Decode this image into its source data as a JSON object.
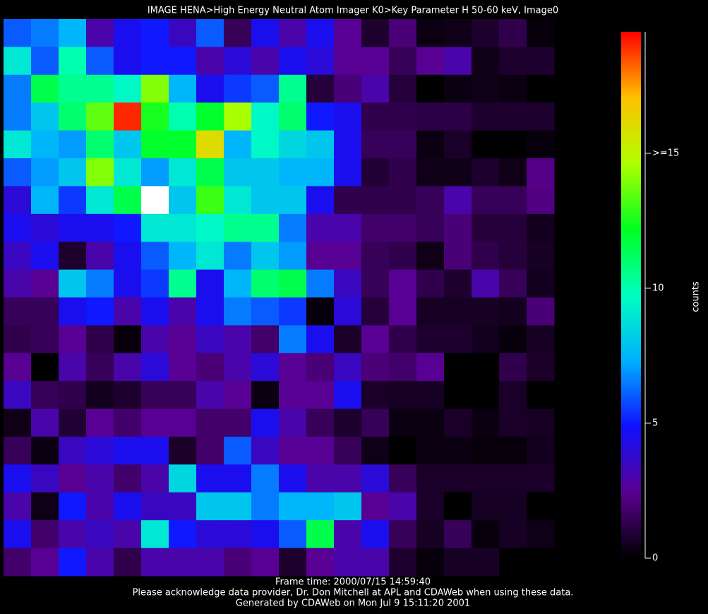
{
  "chart_data": {
    "type": "heatmap",
    "title": "IMAGE  HENA>High Energy Neutral Atom Imager  K0>Key Parameter H 50-60 keV, Image0",
    "annotations": [
      "Frame time: 2000/07/15 14:59:40",
      "Please acknowledge data provider, Dr. Don Mitchell at APL and CDAWeb when using these data.",
      "Generated by CDAWeb on Mon Jul  9 15:11:20 2001"
    ],
    "colorbar_label": "counts",
    "zlim": [
      0,
      19.5
    ],
    "zticks": [
      0,
      5,
      10,
      {
        "value": 15,
        "label": ">=15"
      }
    ],
    "colorscale": [
      "#000000",
      "#5a0090",
      "#1010ff",
      "#00b0ff",
      "#00ffc0",
      "#00ff20",
      "#b0ff00",
      "#ffc000",
      "#ff0000"
    ],
    "over_color": "#ffffff",
    "z": [
      [
        6,
        6.5,
        7.5,
        3,
        4.5,
        5,
        3.5,
        6,
        1.5,
        4.5,
        3,
        4.5,
        2.5,
        0.8,
        2,
        0.3,
        0.4,
        0.8,
        1.3,
        0.2
      ],
      [
        9,
        6,
        10,
        6,
        4.5,
        5,
        5,
        3,
        4,
        3,
        4.5,
        4,
        2.5,
        2.5,
        1.5,
        2.5,
        3,
        0.4,
        0.8,
        0.8
      ],
      [
        6.5,
        11.5,
        10.5,
        10.5,
        9.5,
        14,
        7.5,
        4.5,
        5.5,
        6,
        10.5,
        1,
        2,
        3,
        1,
        0,
        0.3,
        0.4,
        0.3,
        0
      ],
      [
        6.5,
        8,
        11,
        13.5,
        19,
        12.5,
        10,
        12,
        14.5,
        9.5,
        11,
        5,
        4.5,
        1.3,
        1.3,
        1.2,
        1.2,
        0.8,
        0.8,
        0.8
      ],
      [
        9,
        7.5,
        7,
        11,
        8,
        12,
        12,
        16,
        7.5,
        9.5,
        8.5,
        8,
        4.5,
        1.5,
        1.5,
        0.3,
        0.7,
        0,
        0,
        0.2
      ],
      [
        6,
        7,
        8,
        14,
        9,
        7,
        9,
        11.5,
        8,
        8,
        7.5,
        7.5,
        4.5,
        0.9,
        1.3,
        0.4,
        0.4,
        0.8,
        0.4,
        2.3
      ],
      [
        4,
        7.5,
        5.5,
        9,
        11.5,
        21,
        8,
        13,
        9,
        8,
        8,
        4.5,
        1.3,
        1.3,
        1.3,
        1.5,
        3,
        1.5,
        1.5,
        2.2
      ],
      [
        4.5,
        4,
        4.5,
        4.5,
        5,
        9,
        9,
        9.5,
        10.5,
        10.5,
        6.5,
        3,
        3,
        1.8,
        1.8,
        1.5,
        2,
        1,
        1,
        0.5
      ],
      [
        3.5,
        4.5,
        0.8,
        3,
        4.5,
        6,
        7.5,
        9,
        6.5,
        8,
        7,
        2.5,
        2.5,
        1.5,
        1.3,
        0.4,
        2,
        1.3,
        1,
        0.6
      ],
      [
        3,
        2.5,
        8,
        6.5,
        4.5,
        5.5,
        10.5,
        4.5,
        7.5,
        11,
        11.5,
        6.5,
        3.5,
        1.5,
        2.5,
        1.3,
        0.8,
        3,
        1.5,
        0.5
      ],
      [
        1.5,
        1.5,
        4.5,
        5,
        3,
        4.5,
        3,
        4.5,
        6.5,
        6,
        5.5,
        0.2,
        4,
        1,
        2.5,
        0.6,
        0.6,
        0.6,
        0.5,
        2
      ],
      [
        1.3,
        1.5,
        2.5,
        1.3,
        0.2,
        3,
        2.5,
        3.5,
        3,
        1.8,
        6.5,
        4.5,
        0.7,
        2.5,
        1.3,
        0.8,
        0.8,
        0.5,
        0.2,
        0.6
      ],
      [
        2.5,
        0,
        3,
        1.5,
        3,
        4,
        2.5,
        2,
        3,
        4,
        2.5,
        2,
        3.5,
        2,
        1.8,
        2.5,
        0,
        0,
        1.3,
        0.7
      ],
      [
        3.5,
        1.5,
        1.3,
        0.5,
        0.8,
        1.5,
        1.5,
        3,
        2.5,
        0.3,
        2.5,
        2.5,
        4.5,
        0.7,
        0.6,
        0.6,
        0,
        0,
        0.7,
        0
      ],
      [
        0.4,
        3,
        0.9,
        2.5,
        1.8,
        2.5,
        2.5,
        1.8,
        1.8,
        4.5,
        3,
        1.5,
        0.8,
        1.5,
        0.3,
        0.3,
        0.7,
        0.3,
        0.7,
        0.6
      ],
      [
        1.5,
        0.3,
        3.5,
        4,
        4.5,
        4.5,
        0.7,
        1.8,
        6,
        3.5,
        2.5,
        2.5,
        1.5,
        0.4,
        0,
        0.3,
        0.3,
        0.2,
        0.2,
        0.5
      ],
      [
        4.5,
        3.5,
        2.5,
        3,
        1.8,
        3,
        8.5,
        4.5,
        4.5,
        6.5,
        4.5,
        3,
        3,
        4,
        1.5,
        0.7,
        0.7,
        0.7,
        0.7,
        0.7
      ],
      [
        3,
        0.4,
        5,
        3,
        4.5,
        3.5,
        3.5,
        8,
        8,
        6.5,
        7.5,
        7.5,
        8,
        2.5,
        3,
        0.7,
        0,
        0.6,
        0.6,
        0
      ],
      [
        4.5,
        1.8,
        3,
        3.5,
        3,
        9,
        5,
        4,
        4,
        4.5,
        6,
        11.5,
        3,
        4.5,
        1.5,
        0.6,
        1.5,
        0.2,
        0.6,
        0.4
      ],
      [
        1.8,
        2.5,
        5,
        3,
        1.3,
        3,
        3,
        3,
        2,
        2.5,
        0.8,
        2.5,
        3,
        3,
        0.8,
        0.2,
        0.6,
        0.6,
        0,
        0
      ]
    ]
  }
}
